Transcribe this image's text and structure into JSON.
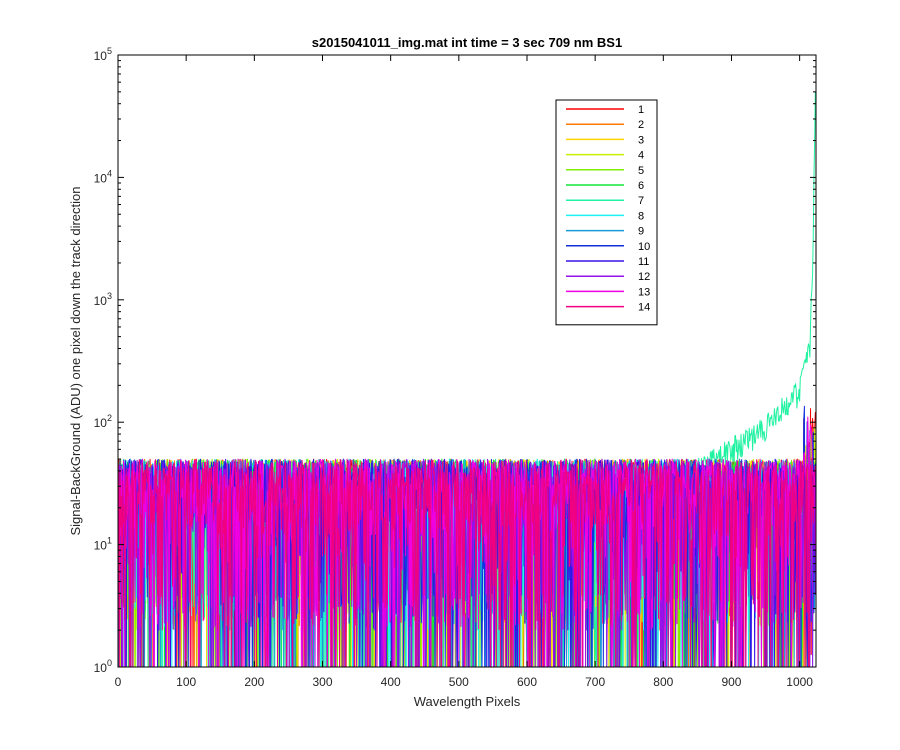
{
  "chart_data": {
    "type": "line",
    "title": "s2015041011_img.mat int time = 3 sec  709 nm BS1",
    "xlabel": "Wavelength Pixels",
    "ylabel": "Signal-BackGround (ADU) one pixel down the track direction",
    "xlim": [
      0,
      1024
    ],
    "ylim": [
      1,
      100000
    ],
    "yscale": "log",
    "grid": false,
    "legend_position": "top-right",
    "x_ticks": [
      "0",
      "100",
      "200",
      "300",
      "400",
      "500",
      "600",
      "700",
      "800",
      "900",
      "1000"
    ],
    "y_ticks": [
      {
        "base": "10",
        "exp": "0"
      },
      {
        "base": "10",
        "exp": "1"
      },
      {
        "base": "10",
        "exp": "2"
      },
      {
        "base": "10",
        "exp": "3"
      },
      {
        "base": "10",
        "exp": "4"
      },
      {
        "base": "10",
        "exp": "5"
      }
    ],
    "series": [
      {
        "name": "1",
        "color": "#ff0000"
      },
      {
        "name": "2",
        "color": "#ff7a00"
      },
      {
        "name": "3",
        "color": "#ffd200"
      },
      {
        "name": "4",
        "color": "#c8f000"
      },
      {
        "name": "5",
        "color": "#7df000"
      },
      {
        "name": "6",
        "color": "#12e63a"
      },
      {
        "name": "7",
        "color": "#1ff2a0"
      },
      {
        "name": "8",
        "color": "#1ff2f2"
      },
      {
        "name": "9",
        "color": "#1a9ad8"
      },
      {
        "name": "10",
        "color": "#1030e0"
      },
      {
        "name": "11",
        "color": "#3a10e8"
      },
      {
        "name": "12",
        "color": "#9a10e8"
      },
      {
        "name": "13",
        "color": "#f000e0"
      },
      {
        "name": "14",
        "color": "#f00080"
      }
    ],
    "noise_floor_range": [
      1,
      60
    ],
    "highlight_series": "7",
    "highlight_tail": [
      {
        "x": 800,
        "y": 30
      },
      {
        "x": 850,
        "y": 40
      },
      {
        "x": 900,
        "y": 60
      },
      {
        "x": 950,
        "y": 90
      },
      {
        "x": 1000,
        "y": 180
      },
      {
        "x": 1015,
        "y": 400
      },
      {
        "x": 1020,
        "y": 3000
      },
      {
        "x": 1023,
        "y": 60000
      }
    ]
  }
}
